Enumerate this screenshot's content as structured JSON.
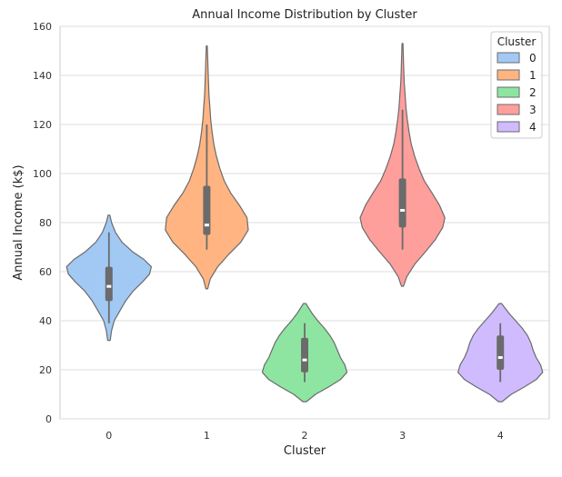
{
  "chart_data": {
    "type": "violin",
    "title": "Annual Income Distribution by Cluster",
    "xlabel": "Cluster",
    "ylabel": "Annual Income (k$)",
    "ylim": [
      0,
      160
    ],
    "yticks": [
      "0",
      "20",
      "40",
      "60",
      "80",
      "100",
      "120",
      "140",
      "160"
    ],
    "categories": [
      "0",
      "1",
      "2",
      "3",
      "4"
    ],
    "grid": "horizontal",
    "legend": {
      "title": "Cluster",
      "placement": "top-right",
      "entries": [
        "0",
        "1",
        "2",
        "3",
        "4"
      ]
    },
    "colors": [
      "#a1c9f4",
      "#ffb482",
      "#8de5a1",
      "#ff9f9b",
      "#d0bbff"
    ],
    "series": [
      {
        "category": "0",
        "min": 39,
        "q1": 48,
        "median": 54,
        "q3": 62,
        "max": 76,
        "violin_extent": [
          32,
          83
        ],
        "density": [
          [
            32,
            0.03
          ],
          [
            36,
            0.06
          ],
          [
            40,
            0.12
          ],
          [
            44,
            0.25
          ],
          [
            48,
            0.38
          ],
          [
            52,
            0.55
          ],
          [
            56,
            0.78
          ],
          [
            59,
            0.93
          ],
          [
            62,
            0.97
          ],
          [
            65,
            0.8
          ],
          [
            68,
            0.55
          ],
          [
            72,
            0.3
          ],
          [
            76,
            0.15
          ],
          [
            80,
            0.06
          ],
          [
            83,
            0.02
          ]
        ]
      },
      {
        "category": "1",
        "min": 69,
        "q1": 75,
        "median": 79,
        "q3": 95,
        "max": 120,
        "violin_extent": [
          53,
          152
        ],
        "density": [
          [
            53,
            0.02
          ],
          [
            57,
            0.08
          ],
          [
            62,
            0.25
          ],
          [
            67,
            0.5
          ],
          [
            72,
            0.78
          ],
          [
            77,
            0.95
          ],
          [
            82,
            0.92
          ],
          [
            87,
            0.75
          ],
          [
            92,
            0.55
          ],
          [
            97,
            0.4
          ],
          [
            102,
            0.3
          ],
          [
            107,
            0.22
          ],
          [
            112,
            0.16
          ],
          [
            117,
            0.12
          ],
          [
            122,
            0.09
          ],
          [
            127,
            0.07
          ],
          [
            132,
            0.05
          ],
          [
            137,
            0.04
          ],
          [
            142,
            0.03
          ],
          [
            147,
            0.02
          ],
          [
            152,
            0.01
          ]
        ]
      },
      {
        "category": "2",
        "min": 15,
        "q1": 19,
        "median": 24,
        "q3": 33,
        "max": 39,
        "violin_extent": [
          7,
          47
        ],
        "density": [
          [
            7,
            0.04
          ],
          [
            10,
            0.25
          ],
          [
            13,
            0.55
          ],
          [
            16,
            0.82
          ],
          [
            19,
            0.97
          ],
          [
            22,
            0.92
          ],
          [
            25,
            0.82
          ],
          [
            28,
            0.75
          ],
          [
            31,
            0.68
          ],
          [
            34,
            0.58
          ],
          [
            37,
            0.45
          ],
          [
            40,
            0.3
          ],
          [
            43,
            0.17
          ],
          [
            47,
            0.03
          ]
        ]
      },
      {
        "category": "3",
        "min": 69,
        "q1": 78,
        "median": 85,
        "q3": 98,
        "max": 126,
        "violin_extent": [
          54,
          153
        ],
        "density": [
          [
            54,
            0.02
          ],
          [
            58,
            0.1
          ],
          [
            63,
            0.28
          ],
          [
            68,
            0.52
          ],
          [
            73,
            0.75
          ],
          [
            78,
            0.92
          ],
          [
            82,
            0.97
          ],
          [
            87,
            0.85
          ],
          [
            92,
            0.68
          ],
          [
            97,
            0.5
          ],
          [
            102,
            0.38
          ],
          [
            107,
            0.28
          ],
          [
            112,
            0.2
          ],
          [
            117,
            0.15
          ],
          [
            122,
            0.11
          ],
          [
            127,
            0.08
          ],
          [
            132,
            0.06
          ],
          [
            137,
            0.04
          ],
          [
            142,
            0.03
          ],
          [
            147,
            0.02
          ],
          [
            153,
            0.01
          ]
        ]
      },
      {
        "category": "4",
        "min": 15,
        "q1": 20,
        "median": 25,
        "q3": 34,
        "max": 39,
        "violin_extent": [
          7,
          47
        ],
        "density": [
          [
            7,
            0.04
          ],
          [
            10,
            0.25
          ],
          [
            13,
            0.55
          ],
          [
            16,
            0.82
          ],
          [
            19,
            0.97
          ],
          [
            22,
            0.92
          ],
          [
            25,
            0.82
          ],
          [
            28,
            0.75
          ],
          [
            31,
            0.7
          ],
          [
            34,
            0.62
          ],
          [
            37,
            0.5
          ],
          [
            40,
            0.35
          ],
          [
            43,
            0.2
          ],
          [
            47,
            0.03
          ]
        ]
      }
    ]
  }
}
